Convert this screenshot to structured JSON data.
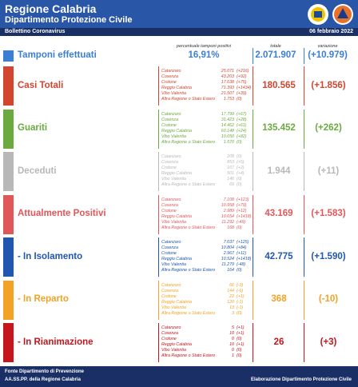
{
  "header": {
    "title": "Regione Calabria",
    "subtitle": "Dipartimento Protezione Civile",
    "bulletin": "Bollettino Coronavirus",
    "date": "06 febbraio 2022"
  },
  "columns": {
    "percent": "percentuale tamponi positivi",
    "total": "totale",
    "change": "variazione"
  },
  "tamponi": {
    "label": "Tamponi effettuati",
    "percent": "16,91%",
    "total": "2.071.907",
    "change": "(+10.979)",
    "color": "#3b7fd4"
  },
  "sections": [
    {
      "label": "Casi Totali",
      "color": "#d2452f",
      "total": "180.565",
      "change": "(+1.856)",
      "rows": [
        [
          "Catanzaro",
          "25.071",
          "(+216)"
        ],
        [
          "Cosenza",
          "43.203",
          "(+92)"
        ],
        [
          "Crotone",
          "17.638",
          "(+75)"
        ],
        [
          "Reggio Calabria",
          "71.393",
          "(+1434)"
        ],
        [
          "Vibo Valentia",
          "21.507",
          "(+39)"
        ],
        [
          "Altra Regione o Stato Estero",
          "1.753",
          "(0)"
        ]
      ]
    },
    {
      "label": "Guariti",
      "color": "#6aaa3f",
      "total": "135.452",
      "change": "(+262)",
      "rows": [
        [
          "Catanzaro",
          "17.799",
          "(+67)"
        ],
        [
          "Cosenza",
          "31.423",
          "(+28)"
        ],
        [
          "Crotone",
          "14.462",
          "(+61)"
        ],
        [
          "Reggio Calabria",
          "60.148",
          "(+24)"
        ],
        [
          "Vibo Valentia",
          "10.050",
          "(+82)"
        ],
        [
          "Altra Regione o Stato Estero",
          "1.570",
          "(0)"
        ]
      ]
    },
    {
      "label": "Deceduti",
      "color": "#b8b8b8",
      "total": "1.944",
      "change": "(+11)",
      "rows": [
        [
          "Catanzaro",
          "208",
          "(0)"
        ],
        [
          "Cosenza",
          "853",
          "(+5)"
        ],
        [
          "Crotone",
          "167",
          "(+2)"
        ],
        [
          "Reggio Calabria",
          "501",
          "(+4)"
        ],
        [
          "Vibo Valentia",
          "146",
          "(0)"
        ],
        [
          "Altra Regione o Stato Estero",
          "69",
          "(0)"
        ]
      ]
    },
    {
      "label": "Attualmente Positivi",
      "color": "#e0575a",
      "total": "43.169",
      "change": "(+1.583)",
      "rows": [
        [
          "Catanzaro",
          "7.108",
          "(+123)"
        ],
        [
          "Cosenza",
          "10.958",
          "(+79)"
        ],
        [
          "Crotone",
          "2.989",
          "(+12)"
        ],
        [
          "Reggio Calabria",
          "10.654",
          "(+1418)"
        ],
        [
          "Vibo Valentia",
          "11.292",
          "(-49)"
        ],
        [
          "Altra Regione o Stato Estero",
          "168",
          "(0)"
        ]
      ]
    },
    {
      "label": "- In Isolamento",
      "color": "#2157b0",
      "total": "42.775",
      "change": "(+1.590)",
      "rows": [
        [
          "Catanzaro",
          "7.037",
          "(+125)"
        ],
        [
          "Cosenza",
          "10.804",
          "(+84)"
        ],
        [
          "Crotone",
          "2.967",
          "(+11)"
        ],
        [
          "Reggio Calabria",
          "10.524",
          "(+1418)"
        ],
        [
          "Vibo Valentia",
          "11.279",
          "(-48)"
        ],
        [
          "Altra Regione o Stato Estero",
          "164",
          "(0)"
        ]
      ]
    },
    {
      "label": "- In Reparto",
      "color": "#f2a325",
      "total": "368",
      "change": "(-10)",
      "rows": [
        [
          "Catanzaro",
          "66",
          "(-3)"
        ],
        [
          "Cosenza",
          "144",
          "(-6)"
        ],
        [
          "Crotone",
          "22",
          "(+1)"
        ],
        [
          "Reggio Calabria",
          "120",
          "(-1)"
        ],
        [
          "Vibo Valentia",
          "13",
          "(-1)"
        ],
        [
          "Altra Regione o Stato Estero",
          "3",
          "(0)"
        ]
      ]
    },
    {
      "label": "- In Rianimazione",
      "color": "#c4161c",
      "total": "26",
      "change": "(+3)",
      "rows": [
        [
          "Catanzaro",
          "5",
          "(+1)"
        ],
        [
          "Cosenza",
          "10",
          "(+1)"
        ],
        [
          "Crotone",
          "0",
          "(0)"
        ],
        [
          "Reggio Calabria",
          "10",
          "(+1)"
        ],
        [
          "Vibo Valentia",
          "0",
          "(0)"
        ],
        [
          "Altra Regione o Stato Estero",
          "1",
          "(0)"
        ]
      ]
    }
  ],
  "footer": {
    "source1": "Fonte Dipartimento di Prevenzione",
    "source2": "AA.SS.PP.  della Regione Calabria",
    "credit": "Elaborazione Dipartimento Protezione Civile"
  }
}
